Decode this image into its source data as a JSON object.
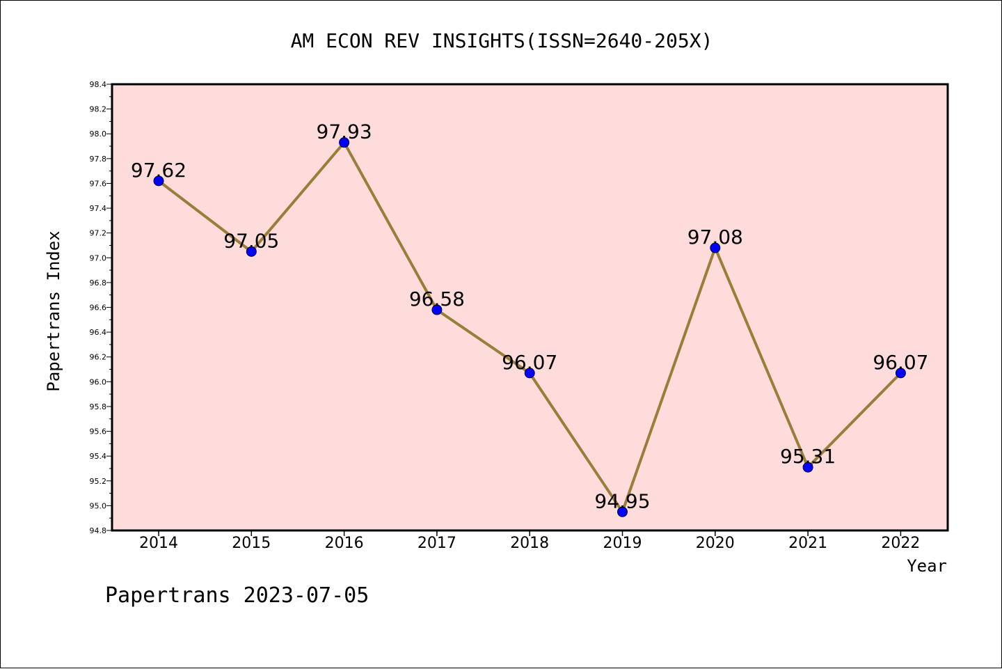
{
  "chart_data": {
    "type": "line",
    "title": "AM ECON REV INSIGHTS(ISSN=2640-205X)",
    "xlabel": "Year",
    "ylabel": "Papertrans Index",
    "categories": [
      "2014",
      "2015",
      "2016",
      "2017",
      "2018",
      "2019",
      "2020",
      "2021",
      "2022"
    ],
    "series": [
      {
        "values": [
          97.62,
          97.05,
          97.93,
          96.58,
          96.07,
          94.95,
          97.08,
          95.31,
          96.07
        ],
        "labels": [
          "97.62",
          "97.05",
          "97.93",
          "96.58",
          "96.07",
          "94.95",
          "97.08",
          "95.31",
          "96.07"
        ]
      }
    ],
    "ylim": [
      94.8,
      98.4
    ],
    "yticks": [
      "94.8",
      "95.0",
      "95.2",
      "95.4",
      "95.6",
      "95.8",
      "96.0",
      "96.2",
      "96.4",
      "96.6",
      "96.8",
      "97.0",
      "97.2",
      "97.4",
      "97.6",
      "97.8",
      "98.0",
      "98.2",
      "98.4"
    ],
    "grid": false,
    "footer": "Papertrans 2023-07-05",
    "colors": {
      "plot_background": "#ffdcdc",
      "line": "#9b7d3a",
      "marker": "#0000ff",
      "axis": "#000000"
    }
  }
}
